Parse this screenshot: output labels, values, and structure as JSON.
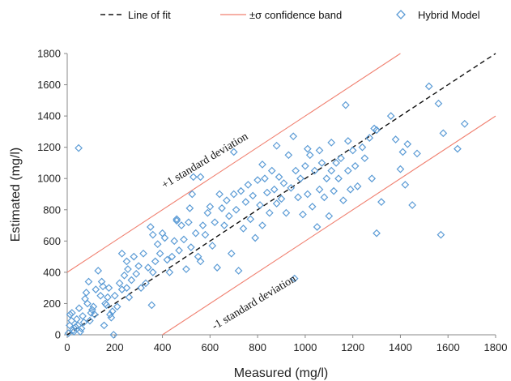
{
  "chart_data": {
    "type": "scatter",
    "xlabel": "Measured (mg/l)",
    "ylabel": "Estimated (mg/l)",
    "xlim": [
      0,
      1800
    ],
    "ylim": [
      0,
      1800
    ],
    "xticks": [
      0,
      200,
      400,
      600,
      800,
      1000,
      1200,
      1400,
      1600,
      1800
    ],
    "yticks": [
      0,
      200,
      400,
      600,
      800,
      1000,
      1200,
      1400,
      1600,
      1800
    ],
    "grid": false,
    "legend_position": "top",
    "legend": {
      "fit": "Line of fit",
      "band": "±σ confidence band",
      "points": "Hybrid Model"
    },
    "fit_line": {
      "slope": 1,
      "intercept": 0
    },
    "band_offset": 400,
    "annotations": {
      "upper": "+1 standard deviation",
      "lower": "-1 standard deviation"
    },
    "colors": {
      "points": "#5b9bd5",
      "band": "#f08070",
      "fit": "#111111"
    },
    "series": [
      {
        "name": "Hybrid Model",
        "points": [
          [
            5,
            10
          ],
          [
            10,
            60
          ],
          [
            12,
            130
          ],
          [
            18,
            90
          ],
          [
            20,
            140
          ],
          [
            25,
            30
          ],
          [
            28,
            20
          ],
          [
            35,
            50
          ],
          [
            40,
            100
          ],
          [
            45,
            60
          ],
          [
            48,
            1195
          ],
          [
            50,
            170
          ],
          [
            55,
            20
          ],
          [
            60,
            40
          ],
          [
            65,
            120
          ],
          [
            70,
            80
          ],
          [
            75,
            230
          ],
          [
            80,
            270
          ],
          [
            85,
            200
          ],
          [
            90,
            340
          ],
          [
            95,
            90
          ],
          [
            100,
            140
          ],
          [
            105,
            160
          ],
          [
            110,
            180
          ],
          [
            115,
            130
          ],
          [
            120,
            290
          ],
          [
            130,
            410
          ],
          [
            140,
            250
          ],
          [
            145,
            340
          ],
          [
            150,
            310
          ],
          [
            155,
            60
          ],
          [
            160,
            200
          ],
          [
            165,
            190
          ],
          [
            170,
            240
          ],
          [
            175,
            300
          ],
          [
            180,
            130
          ],
          [
            185,
            110
          ],
          [
            190,
            150
          ],
          [
            195,
            0
          ],
          [
            200,
            250
          ],
          [
            210,
            180
          ],
          [
            220,
            330
          ],
          [
            230,
            290
          ],
          [
            240,
            380
          ],
          [
            250,
            300
          ],
          [
            255,
            420
          ],
          [
            260,
            240
          ],
          [
            270,
            350
          ],
          [
            280,
            500
          ],
          [
            290,
            390
          ],
          [
            300,
            440
          ],
          [
            310,
            300
          ],
          [
            320,
            520
          ],
          [
            330,
            330
          ],
          [
            340,
            430
          ],
          [
            350,
            690
          ],
          [
            355,
            190
          ],
          [
            360,
            400
          ],
          [
            370,
            470
          ],
          [
            380,
            580
          ],
          [
            390,
            520
          ],
          [
            400,
            650
          ],
          [
            410,
            620
          ],
          [
            420,
            480
          ],
          [
            430,
            400
          ],
          [
            440,
            500
          ],
          [
            450,
            600
          ],
          [
            460,
            730
          ],
          [
            470,
            540
          ],
          [
            480,
            700
          ],
          [
            490,
            610
          ],
          [
            500,
            420
          ],
          [
            510,
            720
          ],
          [
            515,
            810
          ],
          [
            520,
            560
          ],
          [
            525,
            900
          ],
          [
            530,
            1010
          ],
          [
            540,
            650
          ],
          [
            550,
            500
          ],
          [
            560,
            470
          ],
          [
            570,
            700
          ],
          [
            580,
            640
          ],
          [
            590,
            780
          ],
          [
            600,
            820
          ],
          [
            610,
            570
          ],
          [
            620,
            720
          ],
          [
            630,
            430
          ],
          [
            640,
            900
          ],
          [
            650,
            810
          ],
          [
            660,
            700
          ],
          [
            670,
            860
          ],
          [
            680,
            760
          ],
          [
            690,
            520
          ],
          [
            700,
            900
          ],
          [
            710,
            800
          ],
          [
            720,
            410
          ],
          [
            730,
            920
          ],
          [
            740,
            680
          ],
          [
            750,
            850
          ],
          [
            760,
            960
          ],
          [
            770,
            740
          ],
          [
            780,
            890
          ],
          [
            790,
            620
          ],
          [
            800,
            990
          ],
          [
            810,
            830
          ],
          [
            820,
            700
          ],
          [
            830,
            1000
          ],
          [
            840,
            910
          ],
          [
            850,
            780
          ],
          [
            860,
            1050
          ],
          [
            870,
            930
          ],
          [
            880,
            840
          ],
          [
            890,
            1010
          ],
          [
            900,
            870
          ],
          [
            910,
            970
          ],
          [
            920,
            780
          ],
          [
            930,
            1150
          ],
          [
            940,
            940
          ],
          [
            950,
            1270
          ],
          [
            955,
            360
          ],
          [
            960,
            1050
          ],
          [
            970,
            880
          ],
          [
            980,
            1000
          ],
          [
            990,
            770
          ],
          [
            1000,
            1080
          ],
          [
            1010,
            900
          ],
          [
            1020,
            1150
          ],
          [
            1030,
            820
          ],
          [
            1040,
            1050
          ],
          [
            1050,
            690
          ],
          [
            1060,
            930
          ],
          [
            1070,
            1100
          ],
          [
            1080,
            880
          ],
          [
            1090,
            1000
          ],
          [
            1100,
            760
          ],
          [
            1110,
            1050
          ],
          [
            1120,
            920
          ],
          [
            1130,
            1100
          ],
          [
            1140,
            1000
          ],
          [
            1150,
            1130
          ],
          [
            1160,
            860
          ],
          [
            1170,
            1470
          ],
          [
            1180,
            1050
          ],
          [
            1190,
            930
          ],
          [
            1200,
            1180
          ],
          [
            1210,
            1080
          ],
          [
            1220,
            950
          ],
          [
            1250,
            1130
          ],
          [
            1270,
            1260
          ],
          [
            1280,
            1000
          ],
          [
            1290,
            1320
          ],
          [
            1300,
            650
          ],
          [
            1320,
            850
          ],
          [
            1380,
            1250
          ],
          [
            1400,
            1060
          ],
          [
            1410,
            1170
          ],
          [
            1420,
            960
          ],
          [
            1430,
            1220
          ],
          [
            1450,
            830
          ],
          [
            1470,
            1160
          ],
          [
            1520,
            1590
          ],
          [
            1570,
            640
          ],
          [
            1580,
            1290
          ],
          [
            1640,
            1190
          ],
          [
            1670,
            1350
          ],
          [
            1360,
            1400
          ],
          [
            1560,
            1480
          ],
          [
            1300,
            1310
          ],
          [
            1240,
            1200
          ],
          [
            1180,
            1240
          ],
          [
            1110,
            1230
          ],
          [
            1060,
            1180
          ],
          [
            1010,
            1190
          ],
          [
            880,
            1210
          ],
          [
            820,
            1090
          ],
          [
            700,
            1170
          ],
          [
            560,
            1010
          ],
          [
            460,
            740
          ],
          [
            360,
            640
          ],
          [
            250,
            470
          ],
          [
            230,
            520
          ]
        ]
      }
    ]
  }
}
